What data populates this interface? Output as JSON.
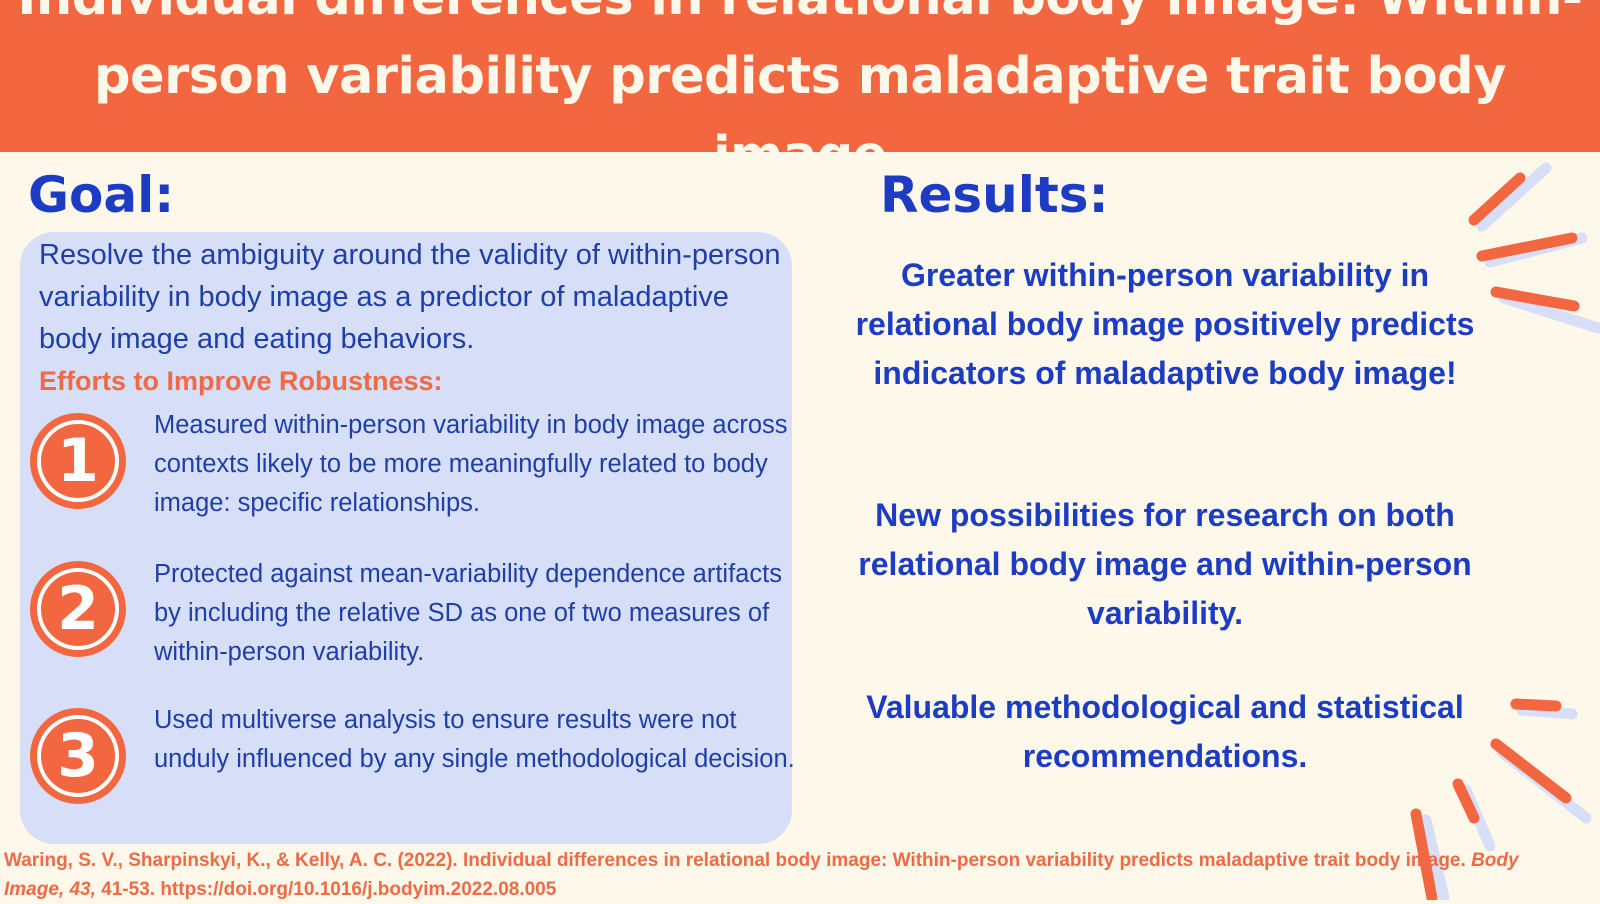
{
  "header": {
    "title_line1": "Individual differences in relational body image: Within-",
    "title_line2": "person variability predicts maladaptive trait body image"
  },
  "goal": {
    "heading": "Goal:",
    "text": "Resolve the ambiguity around the validity of within-person variability in body image as a predictor of maladaptive body image and eating behaviors.",
    "efforts_heading": "Efforts to Improve Robustness:",
    "efforts": [
      {
        "number": "1",
        "text": "Measured within-person variability in body image across contexts likely to be more meaningfully related to body image: specific relationships."
      },
      {
        "number": "2",
        "text": "Protected against mean-variability dependence artifacts by including the relative SD as one of two measures of within-person variability."
      },
      {
        "number": "3",
        "text": "Used multiverse analysis to ensure results were not unduly influenced by any single methodological decision."
      }
    ]
  },
  "results": {
    "heading": "Results:",
    "items": [
      "Greater within-person variability in relational body image positively predicts indicators of maladaptive body image!",
      "New possibilities for research on both relational body image and within-person variability.",
      "Valuable methodological and statistical recommendations."
    ]
  },
  "citation": {
    "authors": "Waring, S. V., Sharpinskyi, K., & Kelly, A. C. (2022). Individual differences in relational body image: Within-person variability predicts maladaptive trait body image. ",
    "journal": "Body Image, 43,",
    "pages_doi": " 41-53. https://doi.org/10.1016/j.bodyim.2022.08.005"
  },
  "colors": {
    "background": "#fdf8ea",
    "accent_orange": "#f26640",
    "primary_blue": "#1c3cc4",
    "box_blue": "#d6def8"
  },
  "icons": [
    "number-1-badge",
    "number-2-badge",
    "number-3-badge",
    "decorative-burst-lines"
  ]
}
